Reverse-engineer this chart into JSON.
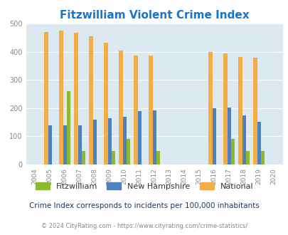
{
  "title": "Fitzwilliam Violent Crime Index",
  "years": [
    2004,
    2005,
    2006,
    2007,
    2008,
    2009,
    2010,
    2011,
    2012,
    2013,
    2014,
    2015,
    2016,
    2017,
    2018,
    2019,
    2020
  ],
  "fitzwilliam": {
    "2005": 0,
    "2006": 260,
    "2007": 47,
    "2008": 0,
    "2009": 47,
    "2010": 90,
    "2011": 0,
    "2012": 47,
    "2013": 0,
    "2014": 0,
    "2015": 0,
    "2016": 0,
    "2017": 90,
    "2018": 47,
    "2019": 47,
    "2020": 0
  },
  "new_hampshire": {
    "2005": 138,
    "2006": 140,
    "2007": 140,
    "2008": 160,
    "2009": 163,
    "2010": 170,
    "2011": 190,
    "2012": 191,
    "2013": 0,
    "2014": 0,
    "2015": 0,
    "2016": 200,
    "2017": 202,
    "2018": 175,
    "2019": 152,
    "2020": 0
  },
  "national": {
    "2005": 469,
    "2006": 474,
    "2007": 467,
    "2008": 455,
    "2009": 431,
    "2010": 405,
    "2011": 387,
    "2012": 387,
    "2013": 0,
    "2014": 0,
    "2015": 0,
    "2016": 398,
    "2017": 394,
    "2018": 381,
    "2019": 379,
    "2020": 0
  },
  "fitzwilliam_color": "#8db832",
  "nh_color": "#4f81bd",
  "national_color": "#f4ac45",
  "bg_color": "#dce9f0",
  "ylim": [
    0,
    500
  ],
  "yticks": [
    0,
    100,
    200,
    300,
    400,
    500
  ],
  "subtitle": "Crime Index corresponds to incidents per 100,000 inhabitants",
  "footer": "© 2024 CityRating.com - https://www.cityrating.com/crime-statistics/",
  "title_color": "#1874cd",
  "subtitle_color": "#1a3a5c",
  "footer_color": "#888888",
  "bar_width": 0.25
}
